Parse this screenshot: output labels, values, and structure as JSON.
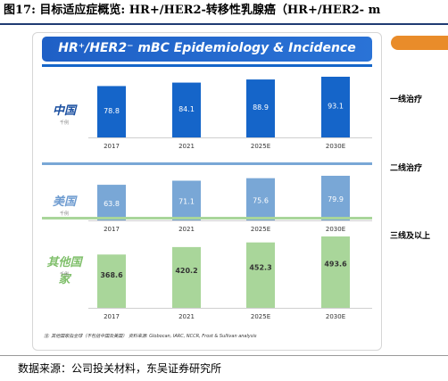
{
  "figure_title": "图17: 目标适应症概览: HR+/HER2-转移性乳腺癌（HR+/HER2- m",
  "panel_title": "HR⁺/HER2⁻ mBC Epidemiology & Incidence",
  "unit_label": "千例",
  "footnote": "注: 其他国家指全球（不包括中国及美国）  资料来源: Globocan, IARC, NCCR, Frost & Sullivan analysis",
  "side_labels": [
    "一线治疗",
    "二线治疗",
    "三线及以上"
  ],
  "source_text": "数据来源：公司投关材料，东吴证券研究所",
  "colors": {
    "china": "#1565c9",
    "usa": "#79a7d6",
    "others": "#a9d69a",
    "china_label": "#1a4fa0",
    "usa_label": "#6d9bd0",
    "others_label": "#7fbf6a",
    "banner": "#2166cc",
    "orange": "#e98c2a"
  },
  "chart_data": [
    {
      "type": "bar",
      "region": "中国",
      "categories": [
        "2017",
        "2021",
        "2025E",
        "2030E"
      ],
      "values": [
        78.8,
        84.1,
        88.9,
        93.1
      ],
      "unit": "千例"
    },
    {
      "type": "bar",
      "region": "美国",
      "categories": [
        "2017",
        "2021",
        "2025E",
        "2030E"
      ],
      "values": [
        63.8,
        71.1,
        75.6,
        79.9
      ],
      "unit": "千例"
    },
    {
      "type": "bar",
      "region": "其他国家",
      "categories": [
        "2017",
        "2021",
        "2025E",
        "2030E"
      ],
      "values": [
        368.6,
        420.2,
        452.3,
        493.6
      ],
      "unit": "千例"
    }
  ]
}
